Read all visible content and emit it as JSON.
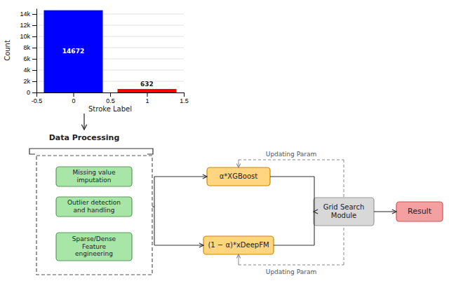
{
  "chart_data": {
    "type": "bar",
    "x": [
      0,
      1
    ],
    "values": [
      14672,
      632
    ],
    "colors": [
      "#0000ff",
      "#ff0000"
    ],
    "xlabel": "Stroke Label",
    "ylabel": "Count",
    "xlim": [
      -0.5,
      1.5
    ],
    "xticks": [
      -0.5,
      0,
      0.5,
      1,
      1.5
    ],
    "ylim": [
      0,
      15000
    ],
    "yticks": [
      0,
      {
        "value": 2000,
        "label": "2k"
      },
      {
        "value": 4000,
        "label": "4k"
      },
      {
        "value": 6000,
        "label": "6k"
      },
      {
        "value": 8000,
        "label": "8k"
      },
      {
        "value": 10000,
        "label": "10k"
      },
      {
        "value": 12000,
        "label": "12k"
      },
      {
        "value": 14000,
        "label": "14k"
      }
    ],
    "grid": true,
    "data_labels": true,
    "annotations": [
      "Data Processing",
      "Missing value\nimputation",
      "Outlier detection\nand handling",
      "Sparse/Dense\nFeature\nengineering",
      "α*XGBoost",
      "(1 − α)*xDeepFM",
      "Grid Search\nModule",
      "Result",
      "Updating Param",
      "Updating Param"
    ]
  }
}
